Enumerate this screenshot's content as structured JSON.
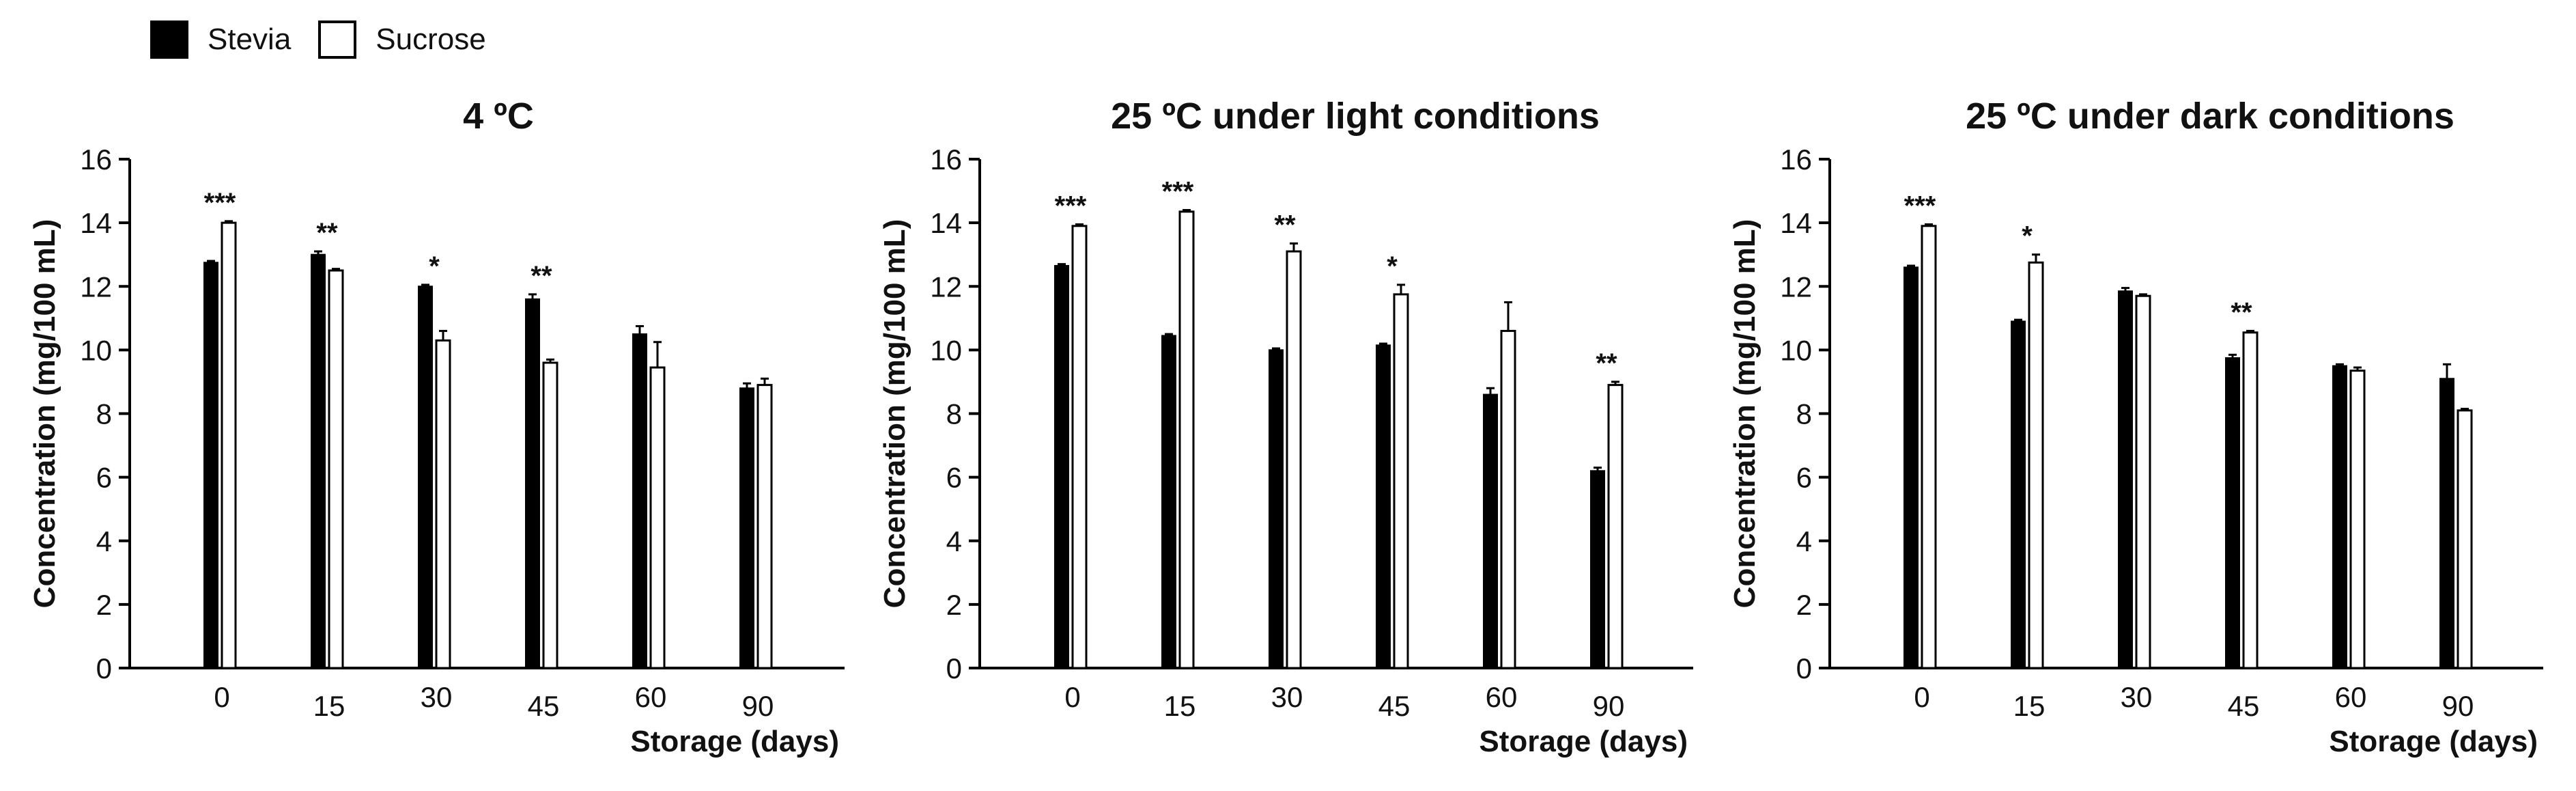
{
  "legend": [
    {
      "name": "Stevia",
      "color": "#000000"
    },
    {
      "name": "Sucrose",
      "color": "#ffffff"
    }
  ],
  "chart_data": [
    {
      "type": "bar",
      "title": "4 ºC",
      "xlabel": "Storage (days)",
      "ylabel": "Concentration (mg/100 mL)",
      "ylim": [
        0,
        16
      ],
      "yticks": [
        "0",
        "2",
        "4",
        "6",
        "8",
        "10",
        "12",
        "14",
        "16"
      ],
      "categories": [
        "0",
        "15",
        "30",
        "45",
        "60",
        "90"
      ],
      "series": [
        {
          "name": "Stevia",
          "color": "#000000",
          "values": [
            12.75,
            13.0,
            12.0,
            11.6,
            10.5,
            8.8
          ],
          "errors": [
            0.05,
            0.1,
            0.05,
            0.15,
            0.25,
            0.15
          ]
        },
        {
          "name": "Sucrose",
          "color": "#ffffff",
          "values": [
            14.0,
            12.5,
            10.3,
            9.6,
            9.45,
            8.9
          ],
          "errors": [
            0.05,
            0.05,
            0.3,
            0.1,
            0.8,
            0.2
          ]
        }
      ],
      "annotations": [
        "***",
        "**",
        "*",
        "**",
        "",
        ""
      ]
    },
    {
      "type": "bar",
      "title": "25 ºC under light conditions",
      "xlabel": "Storage (days)",
      "ylabel": "Concentration (mg/100 mL)",
      "ylim": [
        0,
        16
      ],
      "yticks": [
        "0",
        "2",
        "4",
        "6",
        "8",
        "10",
        "12",
        "14",
        "16"
      ],
      "categories": [
        "0",
        "15",
        "30",
        "45",
        "60",
        "90"
      ],
      "series": [
        {
          "name": "Stevia",
          "color": "#000000",
          "values": [
            12.65,
            10.45,
            10.0,
            10.15,
            8.6,
            6.2
          ],
          "errors": [
            0.05,
            0.05,
            0.05,
            0.05,
            0.2,
            0.1
          ]
        },
        {
          "name": "Sucrose",
          "color": "#ffffff",
          "values": [
            13.9,
            14.35,
            13.1,
            11.75,
            10.6,
            8.9
          ],
          "errors": [
            0.05,
            0.05,
            0.25,
            0.3,
            0.9,
            0.1
          ]
        }
      ],
      "annotations": [
        "***",
        "***",
        "**",
        "*",
        "",
        "**"
      ]
    },
    {
      "type": "bar",
      "title": "25 ºC under dark conditions",
      "xlabel": "Storage (days)",
      "ylabel": "Concentration (mg/100 mL)",
      "ylim": [
        0,
        16
      ],
      "yticks": [
        "0",
        "2",
        "4",
        "6",
        "8",
        "10",
        "12",
        "14",
        "16"
      ],
      "categories": [
        "0",
        "15",
        "30",
        "45",
        "60",
        "90"
      ],
      "series": [
        {
          "name": "Stevia",
          "color": "#000000",
          "values": [
            12.6,
            10.9,
            11.85,
            9.75,
            9.5,
            9.1
          ],
          "errors": [
            0.05,
            0.05,
            0.1,
            0.1,
            0.05,
            0.45
          ]
        },
        {
          "name": "Sucrose",
          "color": "#ffffff",
          "values": [
            13.9,
            12.75,
            11.7,
            10.55,
            9.35,
            8.1
          ],
          "errors": [
            0.05,
            0.25,
            0.05,
            0.05,
            0.1,
            0.05
          ]
        }
      ],
      "annotations": [
        "***",
        "*",
        "",
        "**",
        "",
        ""
      ]
    }
  ]
}
